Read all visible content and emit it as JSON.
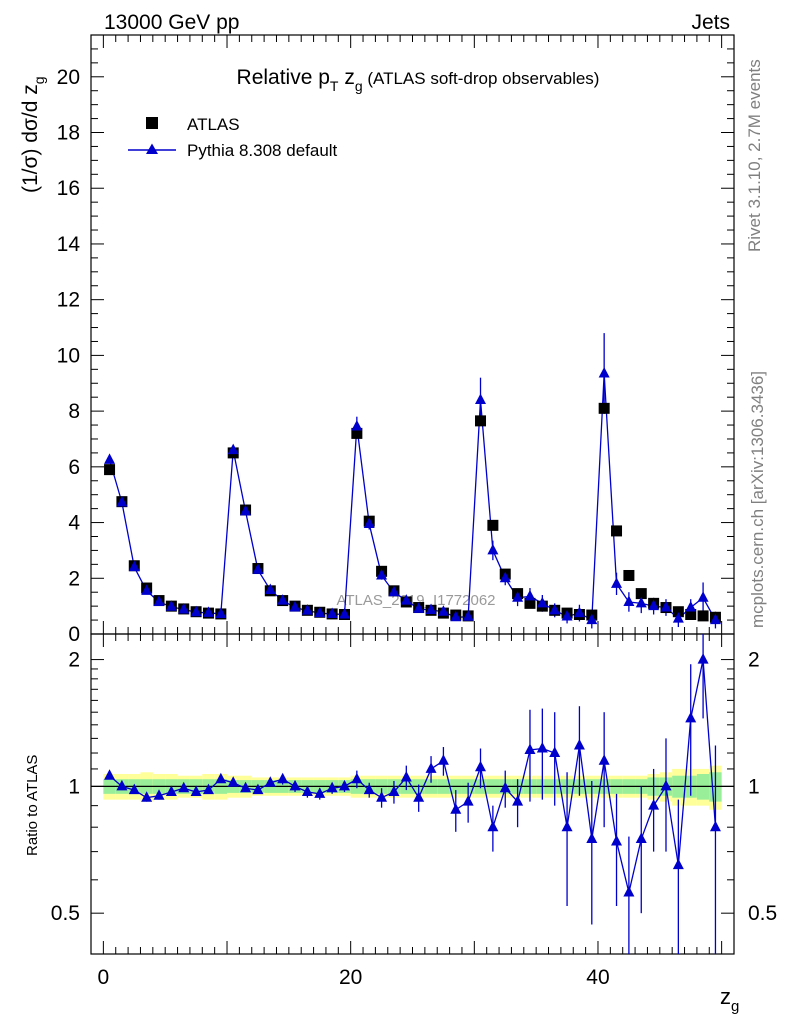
{
  "header": {
    "energy_label": "13000 GeV pp",
    "process_label": "Jets"
  },
  "side_labels": {
    "rivet": "Rivet 3.1.10,  2.7M events",
    "mcplots": "mcplots.cern.ch [arXiv:1306.3436]"
  },
  "watermark": "ATLAS_2019_I1772062",
  "chart_data": {
    "type": "scatter",
    "title": {
      "prefix": "Relative p",
      "sub1": "T",
      "mid": " z",
      "sub2": "g",
      "suffix": " (ATLAS soft-drop observables)"
    },
    "ylabel_main": "(1/σ) dσ/d z",
    "ylabel_main_sub": "g",
    "ylabel_ratio": "Ratio to ATLAS",
    "xlabel": "z",
    "xlabel_sub": "g",
    "xlim": [
      -1,
      51
    ],
    "ylim_main": [
      0,
      21.5
    ],
    "ylim_ratio": [
      0.4,
      2.3
    ],
    "ratio_log_scale": true,
    "x_ticks": [
      "0",
      "20",
      "40"
    ],
    "y_ticks_main": [
      "0",
      "2",
      "4",
      "6",
      "8",
      "10",
      "12",
      "14",
      "16",
      "18",
      "20"
    ],
    "y_ticks_ratio": [
      "0.5",
      "1",
      "2"
    ],
    "legend_position": "top-left",
    "x": [
      0.5,
      1.5,
      2.5,
      3.5,
      4.5,
      5.5,
      6.5,
      7.5,
      8.5,
      9.5,
      10.5,
      11.5,
      12.5,
      13.5,
      14.5,
      15.5,
      16.5,
      17.5,
      18.5,
      19.5,
      20.5,
      21.5,
      22.5,
      23.5,
      24.5,
      25.5,
      26.5,
      27.5,
      28.5,
      29.5,
      30.5,
      31.5,
      32.5,
      33.5,
      34.5,
      35.5,
      36.5,
      37.5,
      38.5,
      39.5,
      40.5,
      41.5,
      42.5,
      43.5,
      44.5,
      45.5,
      46.5,
      47.5,
      48.5,
      49.5
    ],
    "series": [
      {
        "name": "ATLAS",
        "marker": "square",
        "color": "#000000",
        "values": [
          5.9,
          4.75,
          2.45,
          1.65,
          1.2,
          1.0,
          0.9,
          0.8,
          0.75,
          0.72,
          6.5,
          4.45,
          2.35,
          1.55,
          1.2,
          1.0,
          0.85,
          0.78,
          0.72,
          0.7,
          7.2,
          4.05,
          2.25,
          1.55,
          1.15,
          0.95,
          0.85,
          0.75,
          0.68,
          0.65,
          7.65,
          3.9,
          2.15,
          1.45,
          1.1,
          1.0,
          0.85,
          0.75,
          0.7,
          0.68,
          8.1,
          3.7,
          2.1,
          1.45,
          1.1,
          0.95,
          0.8,
          0.7,
          0.65,
          0.6
        ],
        "errors": [
          0.1,
          0.08,
          0.06,
          0.05,
          0.04,
          0.04,
          0.04,
          0.04,
          0.04,
          0.04,
          0.12,
          0.1,
          0.06,
          0.05,
          0.04,
          0.04,
          0.04,
          0.04,
          0.04,
          0.04,
          0.15,
          0.1,
          0.06,
          0.05,
          0.04,
          0.04,
          0.04,
          0.04,
          0.04,
          0.04,
          0.15,
          0.1,
          0.06,
          0.05,
          0.04,
          0.04,
          0.04,
          0.04,
          0.04,
          0.04,
          0.15,
          0.1,
          0.06,
          0.05,
          0.05,
          0.05,
          0.05,
          0.05,
          0.05,
          0.05
        ]
      },
      {
        "name": "Pythia 8.308 default",
        "marker": "triangle",
        "color": "#0000cc",
        "values": [
          6.25,
          4.72,
          2.4,
          1.55,
          1.15,
          0.98,
          0.88,
          0.78,
          0.76,
          0.72,
          6.6,
          4.4,
          2.3,
          1.58,
          1.2,
          0.95,
          0.84,
          0.75,
          0.72,
          0.7,
          7.45,
          3.95,
          2.1,
          1.5,
          1.2,
          0.9,
          0.86,
          0.8,
          0.6,
          0.62,
          8.4,
          3.0,
          2.0,
          1.3,
          1.35,
          1.1,
          0.85,
          0.63,
          0.75,
          0.5,
          9.35,
          1.8,
          1.15,
          1.1,
          1.0,
          0.95,
          0.55,
          0.95,
          1.3,
          0.5
        ],
        "errors": [
          0.1,
          0.08,
          0.06,
          0.05,
          0.04,
          0.04,
          0.04,
          0.04,
          0.04,
          0.04,
          0.15,
          0.1,
          0.06,
          0.05,
          0.05,
          0.05,
          0.05,
          0.05,
          0.05,
          0.05,
          0.35,
          0.2,
          0.15,
          0.1,
          0.1,
          0.1,
          0.1,
          0.1,
          0.1,
          0.1,
          0.8,
          0.35,
          0.25,
          0.3,
          0.3,
          0.3,
          0.25,
          0.25,
          0.3,
          0.3,
          1.45,
          0.4,
          0.35,
          0.35,
          0.3,
          0.3,
          0.3,
          0.3,
          0.55,
          0.3
        ]
      }
    ],
    "ratio": {
      "values": [
        1.06,
        1.0,
        0.98,
        0.94,
        0.95,
        0.97,
        0.99,
        0.97,
        0.98,
        1.04,
        1.02,
        0.99,
        0.98,
        1.02,
        1.04,
        1.0,
        0.97,
        0.96,
        0.99,
        1.0,
        1.04,
        0.98,
        0.94,
        0.97,
        1.05,
        0.94,
        1.1,
        1.15,
        0.88,
        0.92,
        1.11,
        0.8,
        0.99,
        0.92,
        1.22,
        1.23,
        1.2,
        0.8,
        1.25,
        0.75,
        1.15,
        0.74,
        0.56,
        0.75,
        0.9,
        1.0,
        0.65,
        1.45,
        2.0,
        0.8
      ],
      "errors": [
        0.02,
        0.02,
        0.02,
        0.02,
        0.02,
        0.02,
        0.02,
        0.02,
        0.02,
        0.02,
        0.02,
        0.02,
        0.02,
        0.02,
        0.03,
        0.03,
        0.03,
        0.03,
        0.03,
        0.03,
        0.05,
        0.04,
        0.05,
        0.06,
        0.07,
        0.07,
        0.08,
        0.09,
        0.1,
        0.1,
        0.12,
        0.1,
        0.1,
        0.12,
        0.3,
        0.3,
        0.3,
        0.28,
        0.3,
        0.28,
        0.35,
        0.22,
        0.2,
        0.25,
        0.2,
        0.3,
        0.28,
        0.5,
        0.55,
        0.45
      ],
      "band_inner": [
        0.04,
        0.04,
        0.04,
        0.04,
        0.04,
        0.04,
        0.04,
        0.04,
        0.04,
        0.04,
        0.035,
        0.035,
        0.035,
        0.035,
        0.035,
        0.035,
        0.035,
        0.035,
        0.035,
        0.035,
        0.04,
        0.04,
        0.04,
        0.04,
        0.04,
        0.04,
        0.04,
        0.04,
        0.04,
        0.04,
        0.04,
        0.04,
        0.04,
        0.04,
        0.04,
        0.04,
        0.04,
        0.04,
        0.04,
        0.04,
        0.04,
        0.04,
        0.04,
        0.04,
        0.05,
        0.05,
        0.06,
        0.06,
        0.07,
        0.08
      ],
      "band_outer": [
        0.07,
        0.07,
        0.07,
        0.08,
        0.07,
        0.07,
        0.06,
        0.06,
        0.07,
        0.07,
        0.06,
        0.06,
        0.05,
        0.05,
        0.05,
        0.05,
        0.05,
        0.05,
        0.05,
        0.05,
        0.06,
        0.06,
        0.06,
        0.06,
        0.06,
        0.06,
        0.06,
        0.06,
        0.06,
        0.06,
        0.06,
        0.06,
        0.06,
        0.06,
        0.06,
        0.06,
        0.06,
        0.06,
        0.06,
        0.06,
        0.06,
        0.06,
        0.06,
        0.06,
        0.07,
        0.08,
        0.1,
        0.1,
        0.1,
        0.12
      ],
      "band_inner_color": "#99ee99",
      "band_outer_color": "#ffff99"
    }
  }
}
